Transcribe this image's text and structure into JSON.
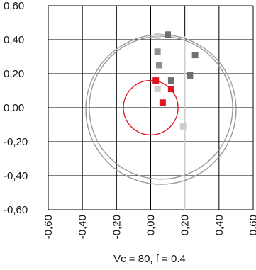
{
  "chart_data": {
    "type": "scatter",
    "title": "",
    "caption": "Vc = 80, f = 0.4",
    "xlim": [
      -0.6,
      0.6
    ],
    "ylim": [
      -0.6,
      0.6
    ],
    "grid": true,
    "x_ticks": [
      -0.6,
      -0.4,
      -0.2,
      0.0,
      0.2,
      0.4,
      0.6
    ],
    "x_tick_labels": [
      "-0,60",
      "-0,40",
      "-0,20",
      "0,00",
      "0,20",
      "0,40",
      "0,60"
    ],
    "y_ticks": [
      0.6,
      0.4,
      0.2,
      0.0,
      -0.2,
      -0.4,
      -0.6
    ],
    "y_tick_labels": [
      "0,60",
      "0,40",
      "0,20",
      "0,00",
      "-0,20",
      "-0,40",
      "-0,60"
    ],
    "colors": {
      "red": "#e0151f",
      "dark_gray": "#6f6f6f",
      "mid_gray": "#8f8f8f",
      "light_gray": "#cfcfcf",
      "circle_gray": "#9a9a9a",
      "grid": "#000000"
    },
    "circles": [
      {
        "name": "red-tolerance-circle",
        "cx": 0.0,
        "cy": 0.0,
        "r": 0.16,
        "color": "#e0151f"
      },
      {
        "name": "gray-outer-circle-1",
        "cx": 0.06,
        "cy": 0.0,
        "r": 0.42,
        "color": "#9a9a9a"
      },
      {
        "name": "gray-outer-circle-2",
        "cx": 0.06,
        "cy": -0.01,
        "r": 0.44,
        "color": "#9a9a9a"
      }
    ],
    "reference_line_x": 0.2,
    "series": [
      {
        "group": "red",
        "color": "#e0151f",
        "points": [
          [
            0.03,
            0.16
          ],
          [
            0.12,
            0.11
          ],
          [
            0.07,
            0.03
          ]
        ]
      },
      {
        "group": "dark_gray",
        "color": "#6f6f6f",
        "points": [
          [
            0.1,
            0.43
          ],
          [
            0.26,
            0.31
          ],
          [
            0.23,
            0.19
          ],
          [
            0.12,
            0.16
          ]
        ]
      },
      {
        "group": "mid_gray",
        "color": "#8f8f8f",
        "points": [
          [
            0.04,
            0.33
          ],
          [
            0.05,
            0.25
          ]
        ]
      },
      {
        "group": "light_gray",
        "color": "#cfcfcf",
        "points": [
          [
            0.04,
            0.42
          ],
          [
            0.04,
            0.11
          ],
          [
            0.19,
            -0.11
          ]
        ]
      }
    ]
  }
}
